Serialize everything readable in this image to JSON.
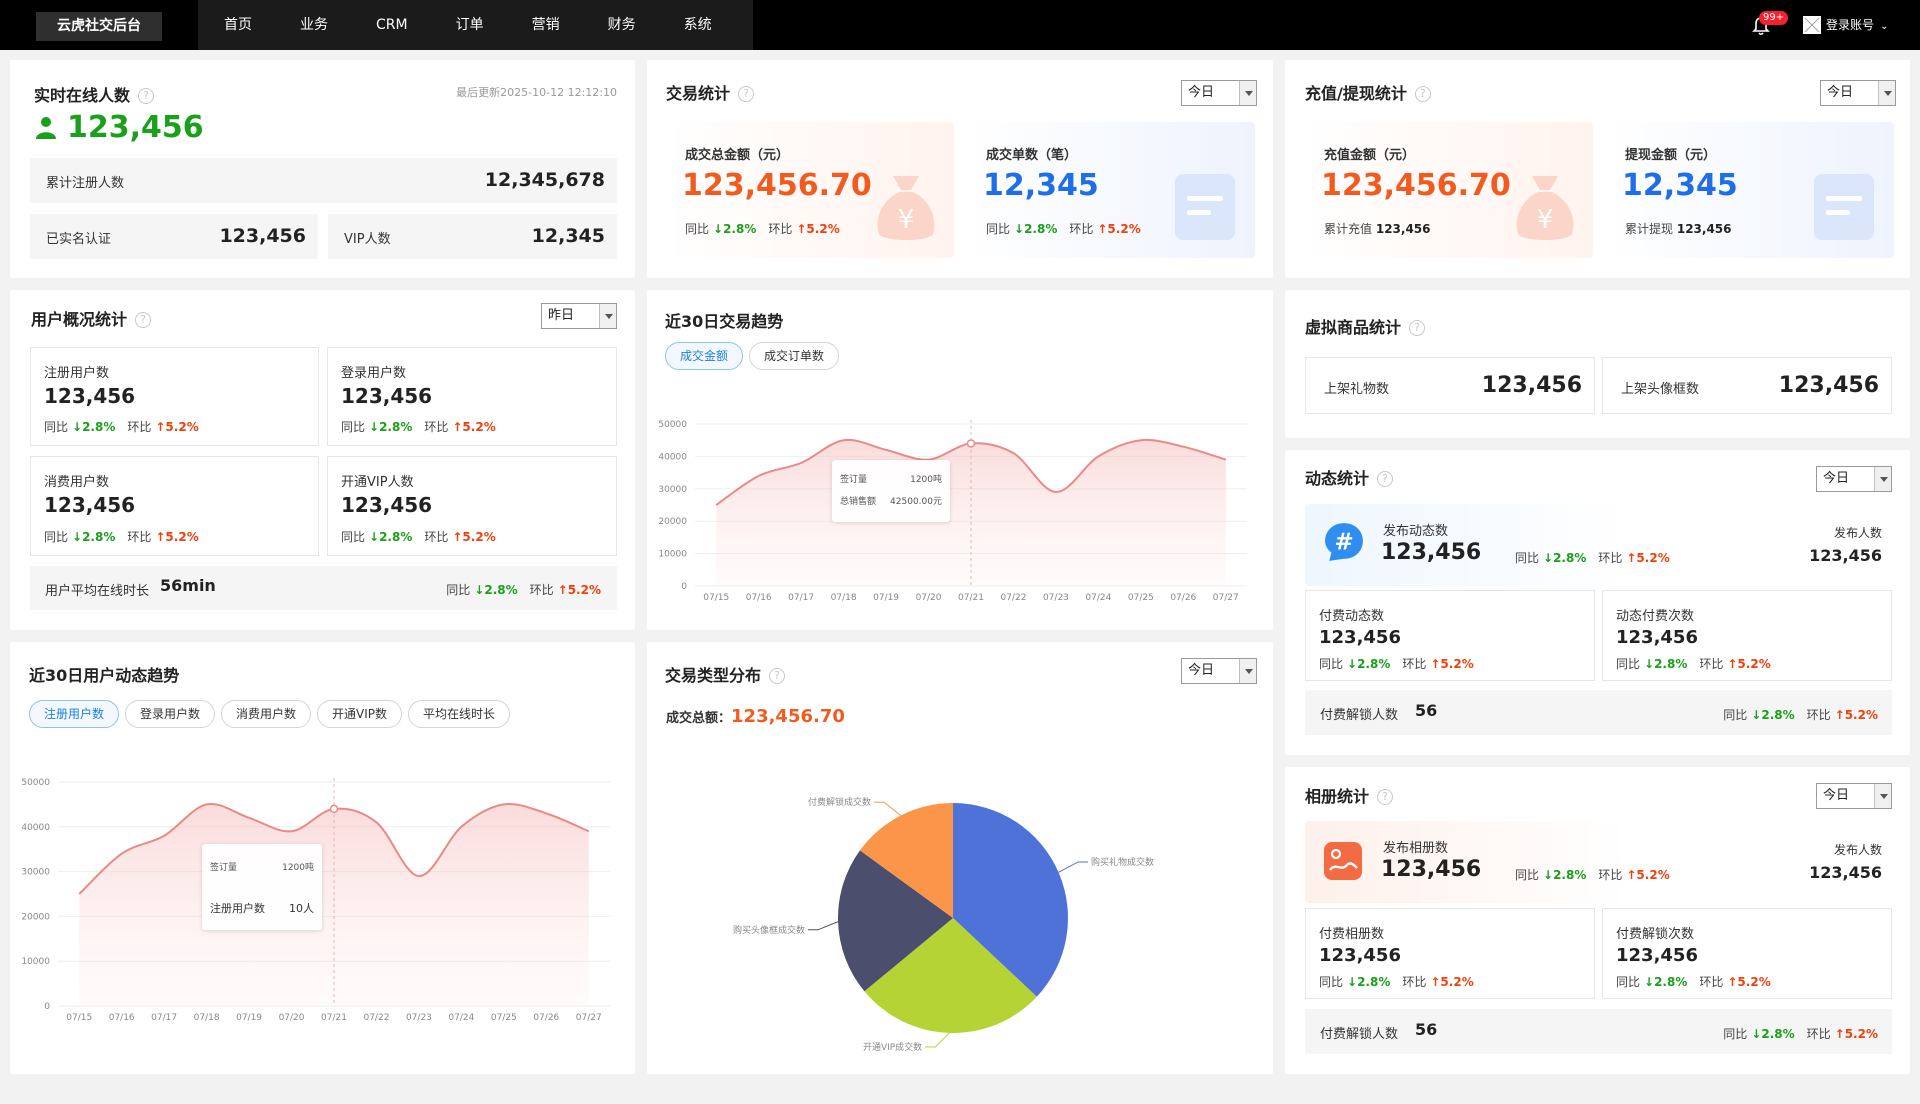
{
  "app": {
    "brand": "云虎社交后台"
  },
  "nav": [
    "首页",
    "业务",
    "CRM",
    "订单",
    "营销",
    "财务",
    "系统"
  ],
  "header": {
    "badge": "99+",
    "account": "登录账号",
    "chevron": "⌄"
  },
  "icons": {
    "help": "?",
    "dollar": "¥",
    "hash": "#"
  },
  "online": {
    "title": "实时在线人数",
    "updated": "最后更新2025-10-12 12:12:10",
    "value": "123,456",
    "total_label": "累计注册人数",
    "total_value": "12,345,678",
    "realname_label": "已实名认证",
    "realname_value": "123,456",
    "vip_label": "VIP人数",
    "vip_value": "12,345"
  },
  "trade": {
    "title": "交易统计",
    "select": "今日",
    "amount_label": "成交总金额（元）",
    "amount_value": "123,456.70",
    "orders_label": "成交单数（笔）",
    "orders_value": "12,345",
    "yoy": "同比",
    "mom": "环比",
    "down": "↓2.8%",
    "up": "↑5.2%"
  },
  "recharge": {
    "title": "充值/提现统计",
    "select": "今日",
    "recharge_label": "充值金额（元）",
    "recharge_value": "123,456.70",
    "recharge_sub_label": "累计充值",
    "recharge_sub_value": "123,456",
    "withdraw_label": "提现金额（元）",
    "withdraw_value": "12,345",
    "withdraw_sub_label": "累计提现",
    "withdraw_sub_value": "123,456"
  },
  "users": {
    "title": "用户概况统计",
    "select": "昨日",
    "boxes": [
      {
        "label": "注册用户数",
        "value": "123,456"
      },
      {
        "label": "登录用户数",
        "value": "123,456"
      },
      {
        "label": "消费用户数",
        "value": "123,456"
      },
      {
        "label": "开通VIP人数",
        "value": "123,456"
      }
    ],
    "avg_label": "用户平均在线时长",
    "avg_value": "56min",
    "yoy": "同比",
    "mom": "环比",
    "down": "↓2.8%",
    "up": "↑5.2%"
  },
  "trend30": {
    "title": "近30日交易趋势",
    "pills": [
      "成交金额",
      "成交订单数"
    ],
    "tooltip": {
      "k1": "签订量",
      "v1": "1200吨",
      "k2": "总销售额",
      "v2": "42500.00元"
    }
  },
  "virtual": {
    "title": "虚拟商品统计",
    "gift_label": "上架礼物数",
    "gift_value": "123,456",
    "frame_label": "上架头像框数",
    "frame_value": "123,456"
  },
  "dynamic": {
    "title": "动态统计",
    "select": "今日",
    "post_label": "发布动态数",
    "post_value": "123,456",
    "posters_label": "发布人数",
    "posters_value": "123,456",
    "paid_label": "付费动态数",
    "paid_value": "123,456",
    "paid_times_label": "动态付费次数",
    "paid_times_value": "123,456",
    "unlock_label": "付费解锁人数",
    "unlock_value": "56",
    "yoy": "同比",
    "mom": "环比",
    "down": "↓2.8%",
    "up": "↑5.2%"
  },
  "user_trend": {
    "title": "近30日用户动态趋势",
    "pills": [
      "注册用户数",
      "登录用户数",
      "消费用户数",
      "开通VIP数",
      "平均在线时长"
    ],
    "tooltip": {
      "k1": "签订量",
      "v1": "1200吨",
      "k2": "注册用户数",
      "v2": "10人"
    }
  },
  "trade_type": {
    "title": "交易类型分布",
    "select": "今日",
    "total_label": "成交总额：",
    "total_value": "123,456.70"
  },
  "album": {
    "title": "相册统计",
    "select": "今日",
    "post_label": "发布相册数",
    "post_value": "123,456",
    "posters_label": "发布人数",
    "posters_value": "123,456",
    "paid_label": "付费相册数",
    "paid_value": "123,456",
    "paid_times_label": "付费解锁次数",
    "paid_times_value": "123,456",
    "unlock_label": "付费解锁人数",
    "unlock_value": "56",
    "yoy": "同比",
    "mom": "环比",
    "down": "↓2.8%",
    "up": "↑5.2%"
  },
  "colors": {
    "orange": "#f25b1f",
    "blue": "#1f6ee8",
    "green": "#1aa01a",
    "up": "#f0410c",
    "line": "#e88a88"
  },
  "chart_data": [
    {
      "type": "area",
      "name_ref": "trend30",
      "x": [
        "07/15",
        "07/16",
        "07/17",
        "07/18",
        "07/19",
        "07/20",
        "07/21",
        "07/22",
        "07/23",
        "07/24",
        "07/25",
        "07/26",
        "07/27"
      ],
      "values": [
        25000,
        34000,
        38000,
        45000,
        42000,
        39000,
        44000,
        41000,
        29000,
        40000,
        45000,
        43000,
        39000
      ],
      "yticks": [
        0,
        10000,
        20000,
        30000,
        40000,
        50000
      ],
      "ylim": [
        0,
        50000
      ]
    },
    {
      "type": "area",
      "name_ref": "user_trend",
      "x": [
        "07/15",
        "07/16",
        "07/17",
        "07/18",
        "07/19",
        "07/20",
        "07/21",
        "07/22",
        "07/23",
        "07/24",
        "07/25",
        "07/26",
        "07/27"
      ],
      "values": [
        25000,
        34000,
        38000,
        45000,
        42000,
        39000,
        44000,
        41000,
        29000,
        40000,
        45000,
        43000,
        39000
      ],
      "yticks": [
        0,
        10000,
        20000,
        30000,
        40000,
        50000
      ],
      "ylim": [
        0,
        50000
      ]
    },
    {
      "type": "pie",
      "name_ref": "trade_type",
      "slices": [
        {
          "label": "购买礼物成交数",
          "value": 37,
          "color": "#4f72d9"
        },
        {
          "label": "开通VIP成交数",
          "value": 27,
          "color": "#b5d334"
        },
        {
          "label": "购买头像框成交数",
          "value": 21,
          "color": "#4b4e6d"
        },
        {
          "label": "付费解锁成交数",
          "value": 15,
          "color": "#fa954a"
        }
      ]
    }
  ]
}
